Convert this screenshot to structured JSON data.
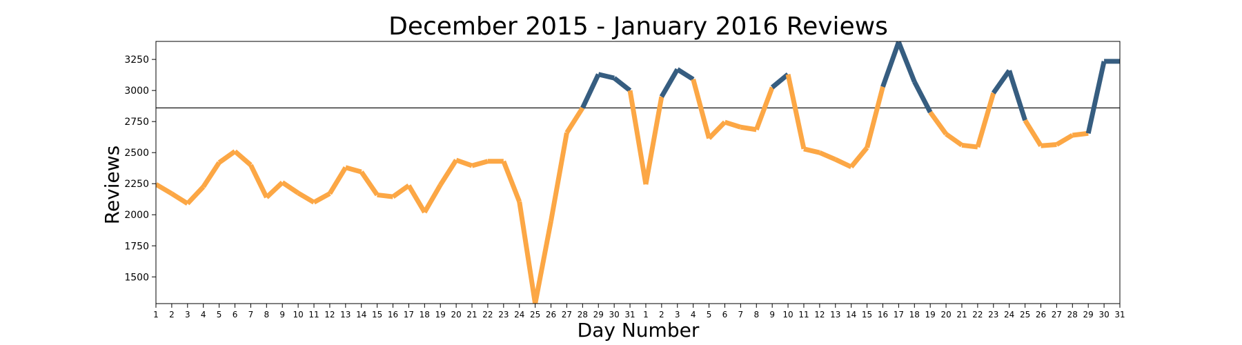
{
  "chart_data": {
    "type": "line",
    "title": "December 2015 - January 2016 Reviews",
    "xlabel": "Day Number",
    "ylabel": "Reviews",
    "x_tick_labels": [
      "1",
      "2",
      "3",
      "4",
      "5",
      "6",
      "7",
      "8",
      "9",
      "10",
      "11",
      "12",
      "13",
      "14",
      "15",
      "16",
      "17",
      "18",
      "19",
      "20",
      "21",
      "22",
      "23",
      "24",
      "25",
      "26",
      "27",
      "28",
      "29",
      "30",
      "31",
      "1",
      "2",
      "3",
      "4",
      "5",
      "6",
      "7",
      "8",
      "9",
      "10",
      "11",
      "12",
      "13",
      "14",
      "15",
      "16",
      "17",
      "18",
      "19",
      "20",
      "21",
      "22",
      "23",
      "24",
      "25",
      "26",
      "27",
      "28",
      "29",
      "30",
      "31"
    ],
    "y_ticks": [
      1500,
      1750,
      2000,
      2250,
      2500,
      2750,
      3000,
      3250
    ],
    "ylim": [
      1285,
      3395
    ],
    "threshold": 2860,
    "values": [
      2245,
      2170,
      2090,
      2225,
      2420,
      2510,
      2400,
      2140,
      2260,
      2175,
      2100,
      2170,
      2380,
      2345,
      2160,
      2145,
      2235,
      2020,
      2240,
      2440,
      2395,
      2430,
      2430,
      2105,
      1285,
      1950,
      2660,
      2860,
      3130,
      3100,
      3000,
      2245,
      2950,
      3170,
      3090,
      2615,
      2745,
      2705,
      2685,
      3025,
      3130,
      2530,
      2500,
      2445,
      2385,
      2540,
      3030,
      3390,
      3070,
      2825,
      2650,
      2560,
      2545,
      2980,
      3160,
      2760,
      2555,
      2565,
      2640,
      2655,
      3235,
      3235
    ],
    "colors": {
      "above": "#365d80",
      "below": "#fca745",
      "threshold_line": "#333333",
      "axes": "#000000"
    },
    "grid": false
  }
}
